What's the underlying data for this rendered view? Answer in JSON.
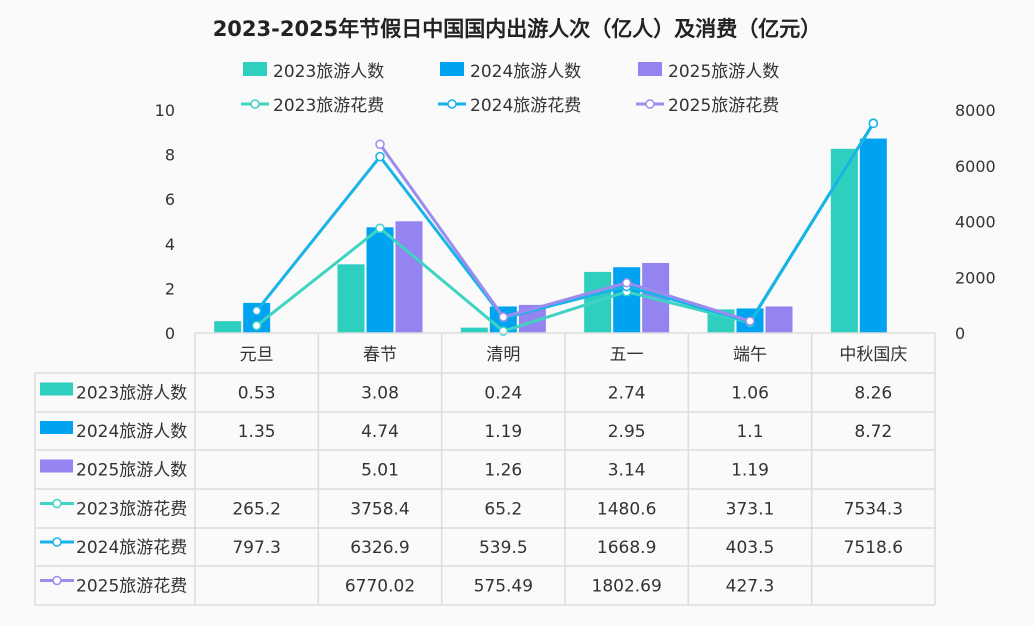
{
  "chart_data": {
    "type": "bar+line",
    "title": "2023-2025年节假日中国国内出游人次（亿人）及消费（亿元）",
    "categories": [
      "元旦",
      "春节",
      "清明",
      "五一",
      "端午",
      "中秋国庆"
    ],
    "bar_axis": {
      "ylim": [
        0,
        10
      ],
      "ticks": [
        "0",
        "2",
        "4",
        "6",
        "8",
        "10"
      ]
    },
    "line_axis": {
      "ylim": [
        0,
        8000
      ],
      "ticks": [
        "0",
        "2000",
        "4000",
        "6000",
        "8000"
      ]
    },
    "legend_position": "top",
    "series": [
      {
        "name": "2023旅游人数",
        "type": "bar",
        "axis": "left",
        "color": "#2ecfbf",
        "values": [
          0.53,
          3.08,
          0.24,
          2.74,
          1.06,
          8.26
        ]
      },
      {
        "name": "2024旅游人数",
        "type": "bar",
        "axis": "left",
        "color": "#00a3ef",
        "values": [
          1.35,
          4.74,
          1.19,
          2.95,
          1.1,
          8.72
        ]
      },
      {
        "name": "2025旅游人数",
        "type": "bar",
        "axis": "left",
        "color": "#9484f1",
        "values": [
          null,
          5.01,
          1.26,
          3.14,
          1.19,
          null
        ]
      },
      {
        "name": "2023旅游花费",
        "type": "line",
        "axis": "right",
        "color": "#3fd3c3",
        "values": [
          265.2,
          3758.4,
          65.2,
          1480.6,
          373.1,
          7534.3
        ]
      },
      {
        "name": "2024旅游花费",
        "type": "line",
        "axis": "right",
        "color": "#17b4e8",
        "values": [
          797.3,
          6326.9,
          539.5,
          1668.9,
          403.5,
          7518.6
        ]
      },
      {
        "name": "2025旅游花费",
        "type": "line",
        "axis": "right",
        "color": "#9c8cee",
        "values": [
          null,
          6770.02,
          575.49,
          1802.69,
          427.3,
          null
        ]
      }
    ],
    "table_values": [
      [
        "0.53",
        "3.08",
        "0.24",
        "2.74",
        "1.06",
        "8.26"
      ],
      [
        "1.35",
        "4.74",
        "1.19",
        "2.95",
        "1.1",
        "8.72"
      ],
      [
        "",
        "5.01",
        "1.26",
        "3.14",
        "1.19",
        ""
      ],
      [
        "265.2",
        "3758.4",
        "65.2",
        "1480.6",
        "373.1",
        "7534.3"
      ],
      [
        "797.3",
        "6326.9",
        "539.5",
        "1668.9",
        "403.5",
        "7518.6"
      ],
      [
        "",
        "6770.02",
        "575.49",
        "1802.69",
        "427.3",
        ""
      ]
    ]
  }
}
